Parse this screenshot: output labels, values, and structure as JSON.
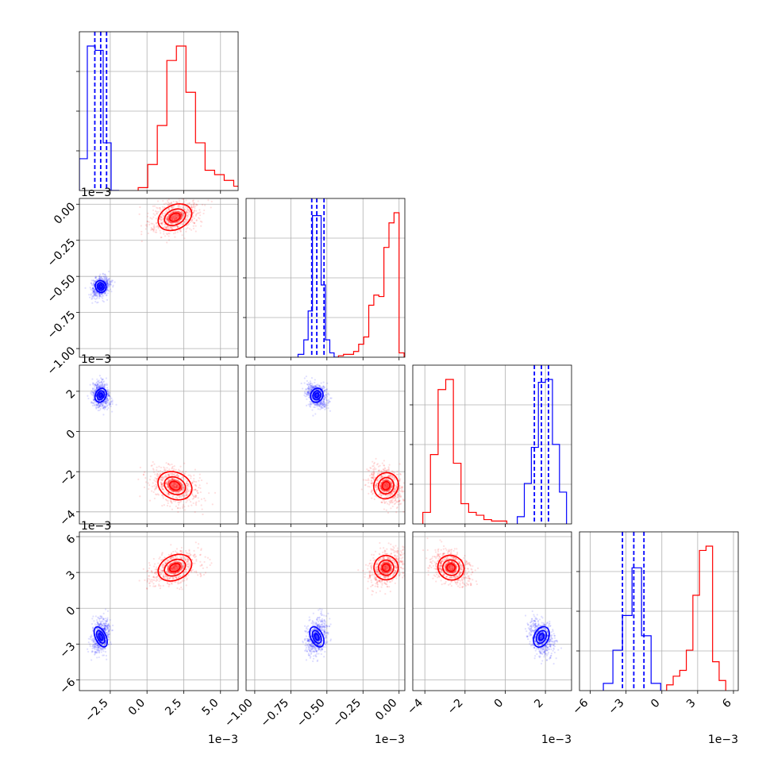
{
  "chart_data": {
    "type": "corner",
    "grid": true,
    "parameters": [
      {
        "ticks": [
          -2.5,
          0.0,
          2.5,
          5.0
        ],
        "tick_labels": [
          "−2.5",
          "0.0",
          "2.5",
          "5.0"
        ],
        "lim": [
          -4.6,
          6.2
        ],
        "offset": "1e−3"
      },
      {
        "ticks": [
          -1.0,
          -0.75,
          -0.5,
          -0.25,
          0.0
        ],
        "tick_labels": [
          "−1.00",
          "−0.75",
          "−0.50",
          "−0.25",
          "0.00"
        ],
        "lim": [
          -1.06,
          0.04
        ],
        "offset": "1e−3"
      },
      {
        "ticks": [
          -4,
          -2,
          0,
          2
        ],
        "tick_labels": [
          "−4",
          "−2",
          "0",
          "2"
        ],
        "lim": [
          -4.6,
          3.3
        ],
        "offset": "1e−3"
      },
      {
        "ticks": [
          -6,
          -3,
          0,
          3,
          6
        ],
        "tick_labels": [
          "−6",
          "−3",
          "0",
          "3",
          "6"
        ],
        "lim": [
          -6.9,
          6.4
        ],
        "offset": "1e−3"
      }
    ],
    "series": [
      {
        "color": "#0000ff",
        "histograms": [
          {
            "edges": [
              -4.6,
              -4.06,
              -3.52,
              -2.98,
              -2.44,
              -1.9
            ],
            "counts": [
              0.22,
              1.0,
              0.97,
              0.33,
              0.0
            ]
          },
          {
            "edges": [
              -0.7,
              -0.66,
              -0.63,
              -0.6,
              -0.57,
              -0.54,
              -0.51,
              -0.48,
              -0.45,
              -0.42
            ],
            "counts": [
              0.02,
              0.12,
              0.32,
              0.98,
              0.98,
              0.5,
              0.12,
              0.03,
              0.0
            ]
          },
          {
            "edges": [
              0.6,
              0.95,
              1.3,
              1.65,
              2.0,
              2.35,
              2.7,
              3.05
            ],
            "counts": [
              0.05,
              0.28,
              0.53,
              0.98,
              1.0,
              0.55,
              0.22
            ]
          },
          {
            "edges": [
              -4.9,
              -4.1,
              -3.3,
              -2.5,
              -1.7,
              -0.9,
              -0.1
            ],
            "counts": [
              0.05,
              0.28,
              0.52,
              0.85,
              0.38,
              0.05
            ]
          }
        ],
        "quantiles": [
          [
            -3.55,
            -3.15,
            -2.75
          ],
          [
            -0.605,
            -0.57,
            -0.52
          ],
          [
            1.45,
            1.8,
            2.15
          ],
          [
            -3.3,
            -2.35,
            -1.5
          ]
        ],
        "mean": [
          -3.15,
          -0.57,
          1.8,
          -2.4
        ],
        "std": [
          0.3,
          0.035,
          0.3,
          0.75
        ]
      },
      {
        "color": "#ff0000",
        "histograms": [
          {
            "edges": [
              -0.6,
              0.05,
              0.7,
              1.35,
              2.0,
              2.65,
              3.3,
              3.95,
              4.6,
              5.25,
              5.9,
              6.55
            ],
            "counts": [
              0.02,
              0.18,
              0.45,
              0.9,
              1.0,
              0.68,
              0.33,
              0.14,
              0.11,
              0.07,
              0.03
            ]
          },
          {
            "edges": [
              -0.42,
              -0.385,
              -0.35,
              -0.315,
              -0.28,
              -0.245,
              -0.21,
              -0.175,
              -0.14,
              -0.105,
              -0.07,
              -0.035,
              0.0,
              0.035
            ],
            "counts": [
              0.01,
              0.02,
              0.02,
              0.04,
              0.09,
              0.14,
              0.36,
              0.43,
              0.42,
              0.76,
              0.93,
              1.0,
              0.03
            ]
          },
          {
            "edges": [
              -4.1,
              -3.72,
              -3.34,
              -2.96,
              -2.58,
              -2.2,
              -1.82,
              -1.44,
              -1.06,
              -0.68,
              -0.3,
              0.08
            ],
            "counts": [
              0.08,
              0.48,
              0.93,
              1.0,
              0.42,
              0.14,
              0.08,
              0.06,
              0.03,
              0.02,
              0.02
            ]
          },
          {
            "edges": [
              0.4,
              0.95,
              1.5,
              2.05,
              2.6,
              3.15,
              3.7,
              4.25,
              4.8,
              5.35
            ],
            "counts": [
              0.04,
              0.1,
              0.14,
              0.28,
              0.66,
              0.97,
              1.0,
              0.2,
              0.07
            ]
          }
        ],
        "mean": [
          1.9,
          -0.09,
          -2.7,
          3.4
        ],
        "std": [
          1.0,
          0.07,
          0.55,
          0.85
        ]
      }
    ]
  }
}
